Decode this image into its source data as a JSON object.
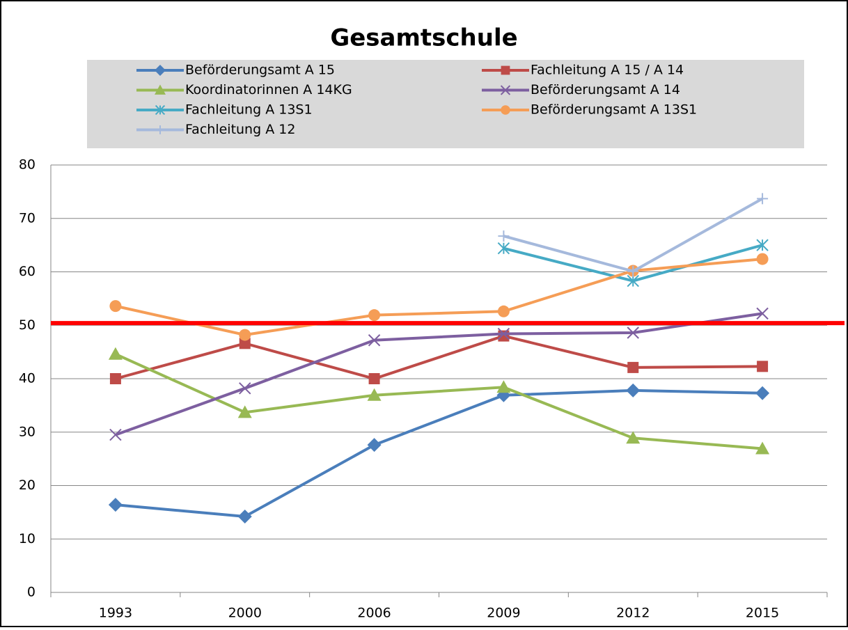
{
  "chart_data": {
    "type": "line",
    "title": "Gesamtschule",
    "categories": [
      "1993",
      "2000",
      "2006",
      "2009",
      "2012",
      "2015"
    ],
    "series": [
      {
        "name": "Beförderungsamt A 15",
        "color": "#4a7ebb",
        "marker": "diamond",
        "values": [
          16.4,
          14.2,
          27.6,
          36.9,
          37.8,
          37.3
        ]
      },
      {
        "name": "Fachleitung  A 15 / A 14",
        "color": "#be4b48",
        "marker": "square",
        "values": [
          40,
          46.6,
          40,
          48,
          42.1,
          42.3
        ]
      },
      {
        "name": "Koordinatorinnen A 14KG",
        "color": "#98b954",
        "marker": "triangle",
        "values": [
          44.6,
          33.7,
          36.9,
          38.4,
          28.9,
          26.9
        ]
      },
      {
        "name": "Beförderungsamt A 14",
        "color": "#7d5fa0",
        "marker": "x",
        "values": [
          29.5,
          38.2,
          47.2,
          48.4,
          48.6,
          52.2
        ]
      },
      {
        "name": "Fachleitung A 13S1",
        "color": "#46aac5",
        "marker": "star",
        "values": [
          null,
          null,
          null,
          64.4,
          58.3,
          65.0
        ]
      },
      {
        "name": "Beförderungsamt A 13S1",
        "color": "#f59d56",
        "marker": "circle",
        "values": [
          53.6,
          48.2,
          51.9,
          52.6,
          60.2,
          62.4
        ]
      },
      {
        "name": "Fachleitung A 12",
        "color": "#a5b9dc",
        "marker": "plus",
        "values": [
          null,
          null,
          null,
          66.7,
          60.1,
          73.7
        ]
      }
    ],
    "reference_line": {
      "value": 50.4,
      "color": "#ff0000"
    },
    "ylim": [
      0,
      80
    ],
    "yticks": [
      0,
      10,
      20,
      30,
      40,
      50,
      60,
      70,
      80
    ],
    "grid": true
  }
}
